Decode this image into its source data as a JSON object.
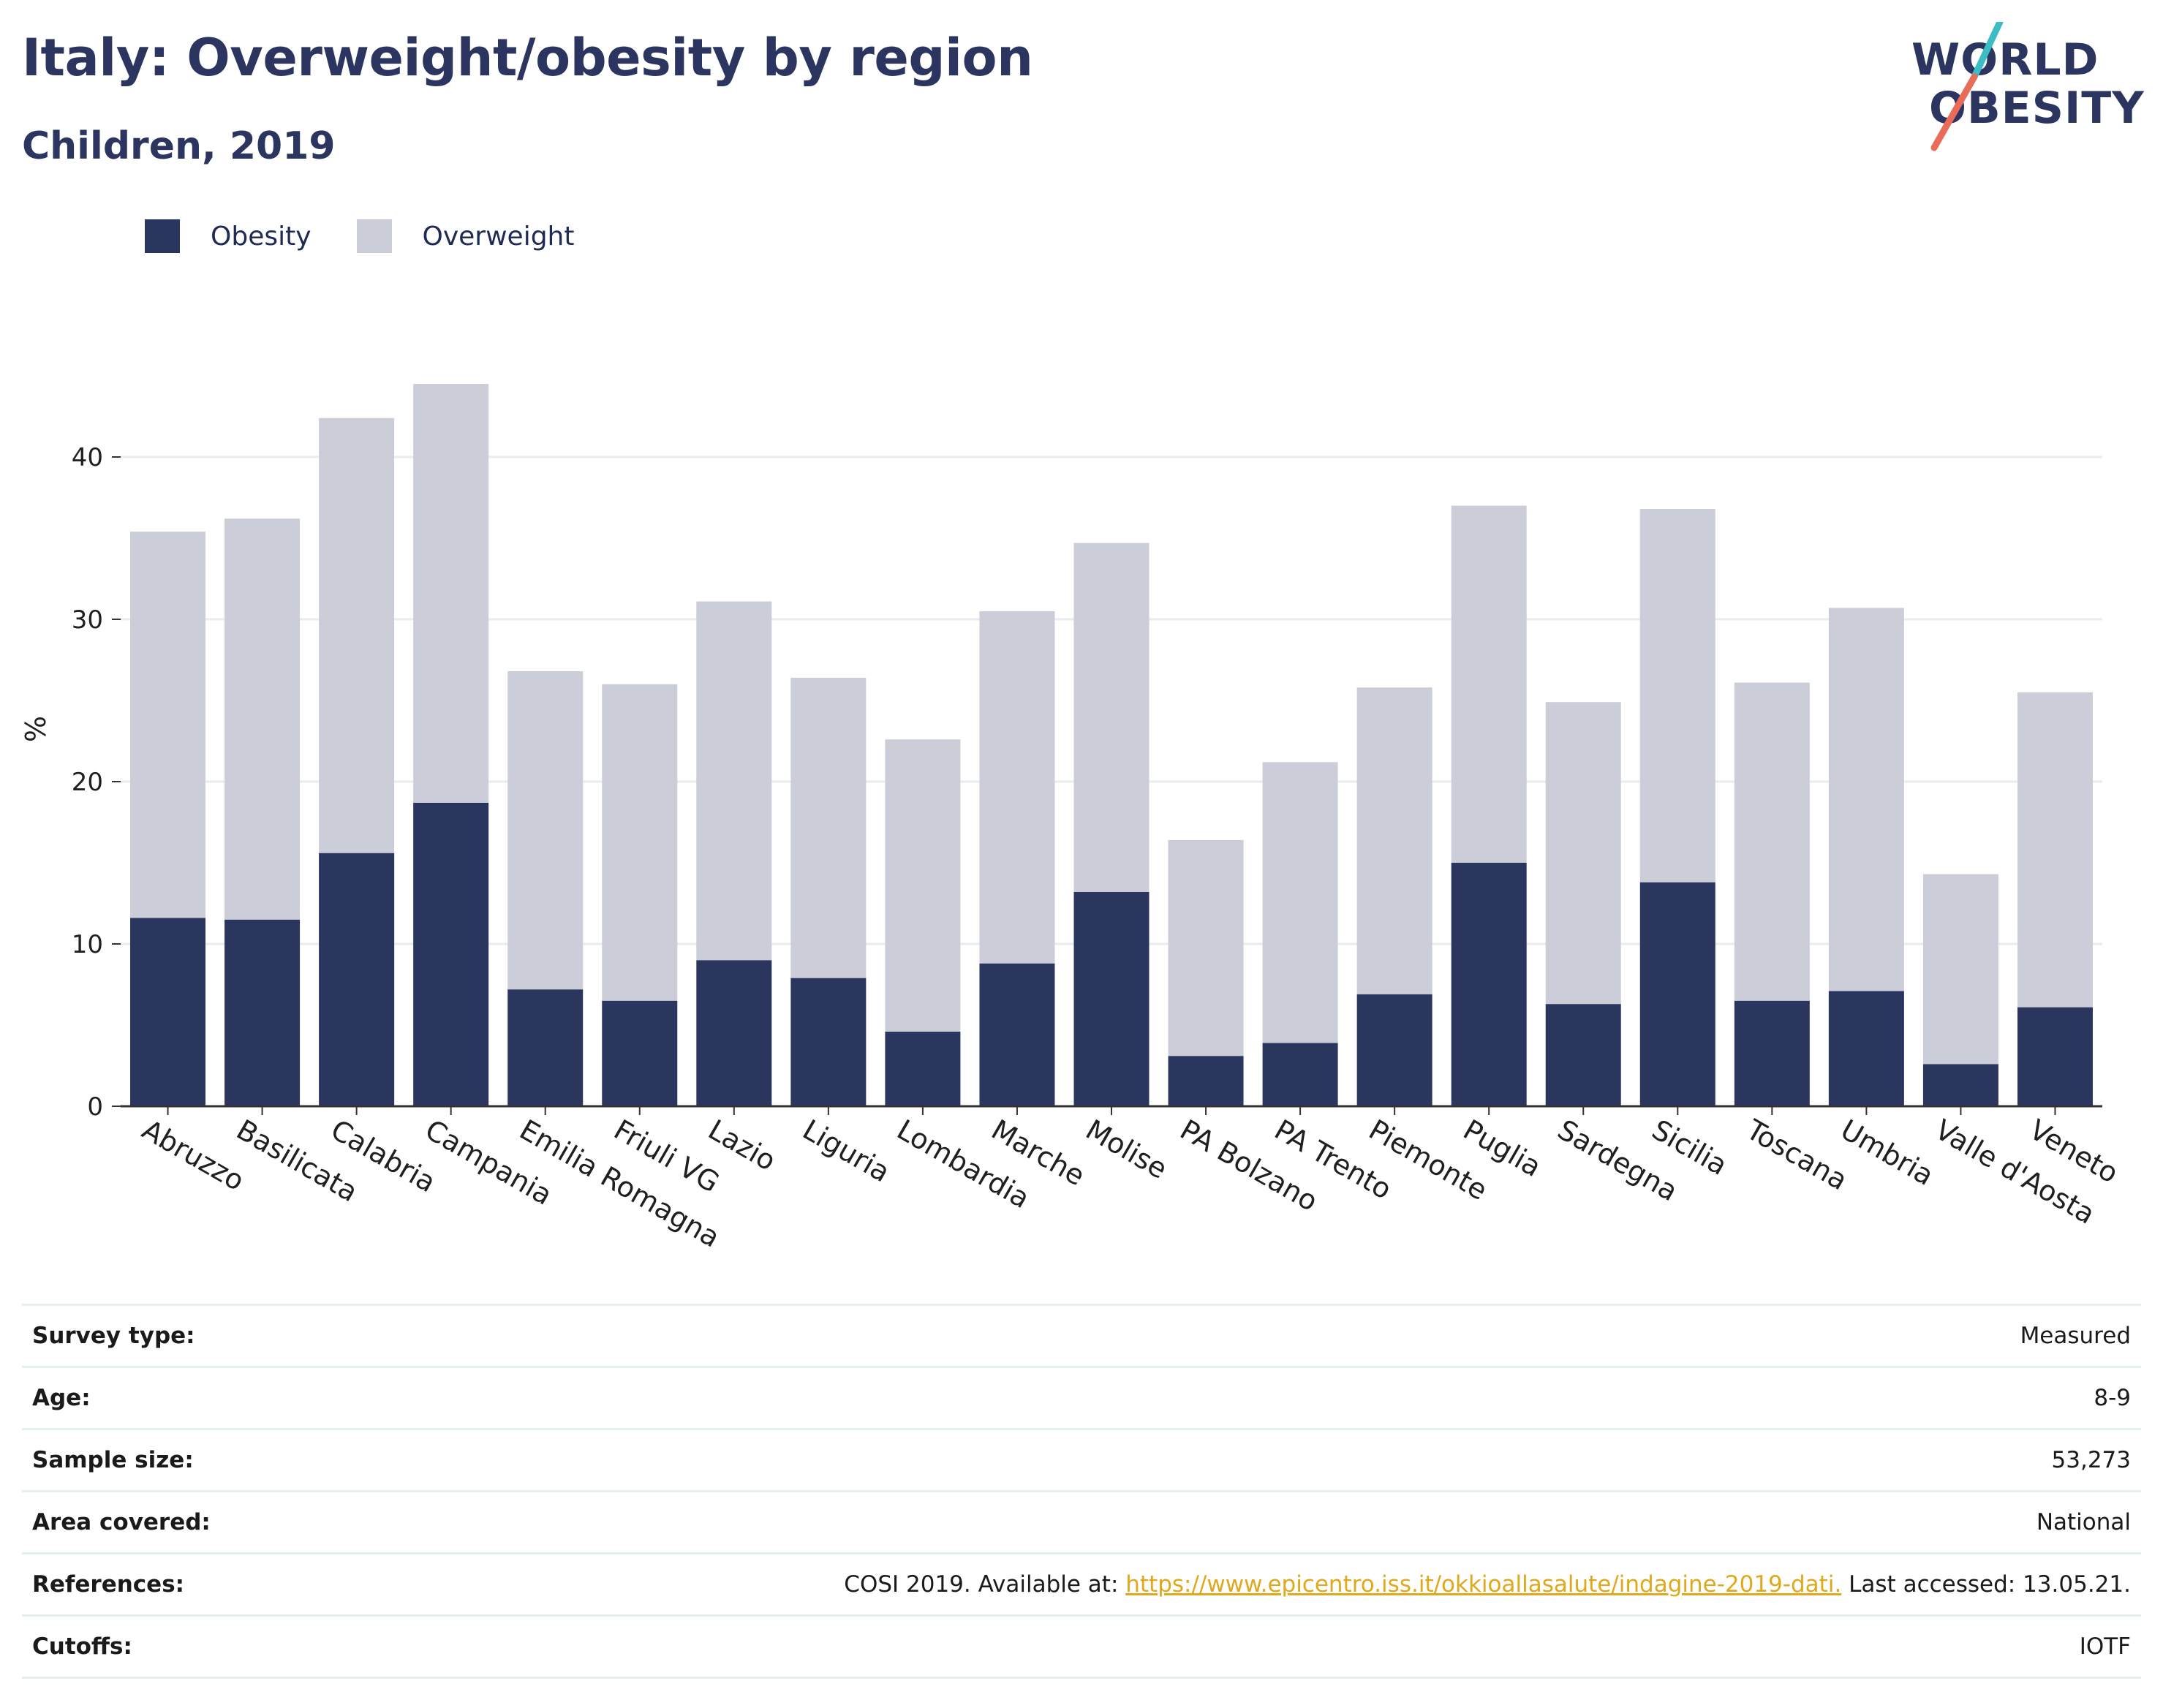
{
  "title": "Italy: Overweight/obesity by region",
  "subtitle": "Children, 2019",
  "logo": {
    "line1": "WORLD",
    "line2": "OBESITY"
  },
  "colors": {
    "obesity": "#2b365f",
    "overweight": "#cbcdd8",
    "accent_teal": "#3cbcc3",
    "accent_coral": "#e96c58",
    "link": "#e0a91b"
  },
  "legend": [
    {
      "label": "Obesity",
      "color": "#2b365f"
    },
    {
      "label": "Overweight",
      "color": "#cbcdd8"
    }
  ],
  "chart_data": {
    "type": "bar",
    "stacked": true,
    "ylabel": "%",
    "xlabel": "",
    "ylim": [
      0,
      46
    ],
    "yticks": [
      0,
      10,
      20,
      30,
      40
    ],
    "grid": true,
    "legend_position": "top-left",
    "categories": [
      "Abruzzo",
      "Basilicata",
      "Calabria",
      "Campania",
      "Emilia Romagna",
      "Friuli VG",
      "Lazio",
      "Liguria",
      "Lombardia",
      "Marche",
      "Molise",
      "PA Bolzano",
      "PA Trento",
      "Piemonte",
      "Puglia",
      "Sardegna",
      "Sicilia",
      "Toscana",
      "Umbria",
      "Valle d'Aosta",
      "Veneto"
    ],
    "series": [
      {
        "name": "Obesity",
        "values": [
          11.6,
          11.5,
          15.6,
          18.7,
          7.2,
          6.5,
          9.0,
          7.9,
          4.6,
          8.8,
          13.2,
          3.1,
          3.9,
          6.9,
          15.0,
          6.3,
          13.8,
          6.5,
          7.1,
          2.6,
          6.1
        ]
      },
      {
        "name": "Overweight",
        "values": [
          23.8,
          24.7,
          26.8,
          25.8,
          19.6,
          19.5,
          22.1,
          18.5,
          18.0,
          21.7,
          21.5,
          13.3,
          17.3,
          18.9,
          22.0,
          18.6,
          23.0,
          19.6,
          23.6,
          11.7,
          19.4
        ]
      }
    ]
  },
  "info_table": [
    {
      "key": "Survey type:",
      "value": "Measured"
    },
    {
      "key": "Age:",
      "value": "8-9"
    },
    {
      "key": "Sample size:",
      "value": "53,273"
    },
    {
      "key": "Area covered:",
      "value": "National"
    },
    {
      "key": "References:",
      "value_prefix": "COSI 2019. Available at: ",
      "link": "https://www.epicentro.iss.it/okkioallasalute/indagine-2019-dati.",
      "value_suffix": " Last accessed: 13.05.21."
    },
    {
      "key": "Cutoffs:",
      "value": "IOTF"
    }
  ]
}
